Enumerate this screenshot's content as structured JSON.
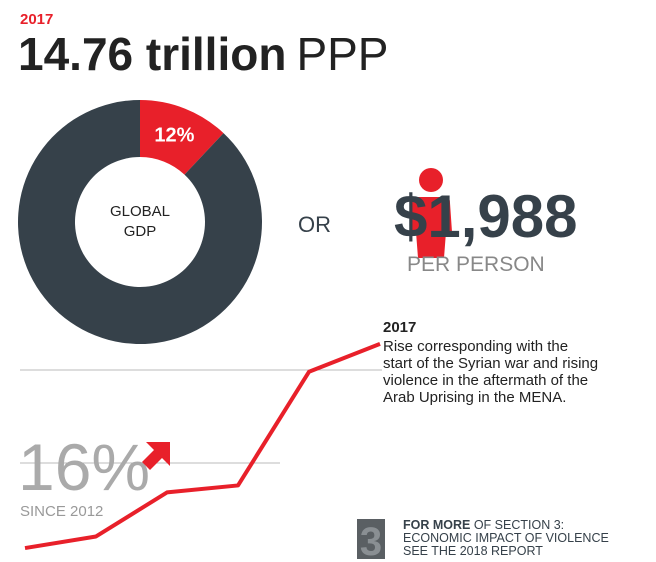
{
  "header": {
    "year": "2017",
    "amount": "14.76 trillion",
    "unit": "PPP"
  },
  "chart_data": [
    {
      "type": "pie",
      "donut": true,
      "categories": [
        null,
        null
      ],
      "values": [
        12,
        88
      ],
      "value_labels": [
        "12%",
        null
      ],
      "colors": [
        "#e8202a",
        "#36414a"
      ],
      "center_label": [
        "GLOBAL",
        "GDP"
      ]
    },
    {
      "type": "line",
      "categories": [
        null,
        null,
        null,
        null,
        null,
        null
      ],
      "values": [
        6,
        11,
        30,
        33,
        82,
        94
      ],
      "ylim": [
        0,
        100
      ],
      "color": "#e8202a"
    }
  ],
  "comparison": {
    "connector": "OR",
    "amount": "$1,988",
    "caption": "PER PERSON"
  },
  "annotation": {
    "title": "2017",
    "lines": [
      "Rise corresponding with the",
      "start of the Syrian war and rising",
      "violence in the aftermath of the",
      "Arab Uprising in the MENA."
    ]
  },
  "growth": {
    "value": "16%",
    "caption": "SINCE 2012"
  },
  "footer": {
    "number": "3",
    "lead": "FOR MORE",
    "lines": [
      " OF SECTION 3:",
      "ECONOMIC IMPACT OF VIOLENCE",
      "SEE THE 2018 REPORT"
    ]
  }
}
